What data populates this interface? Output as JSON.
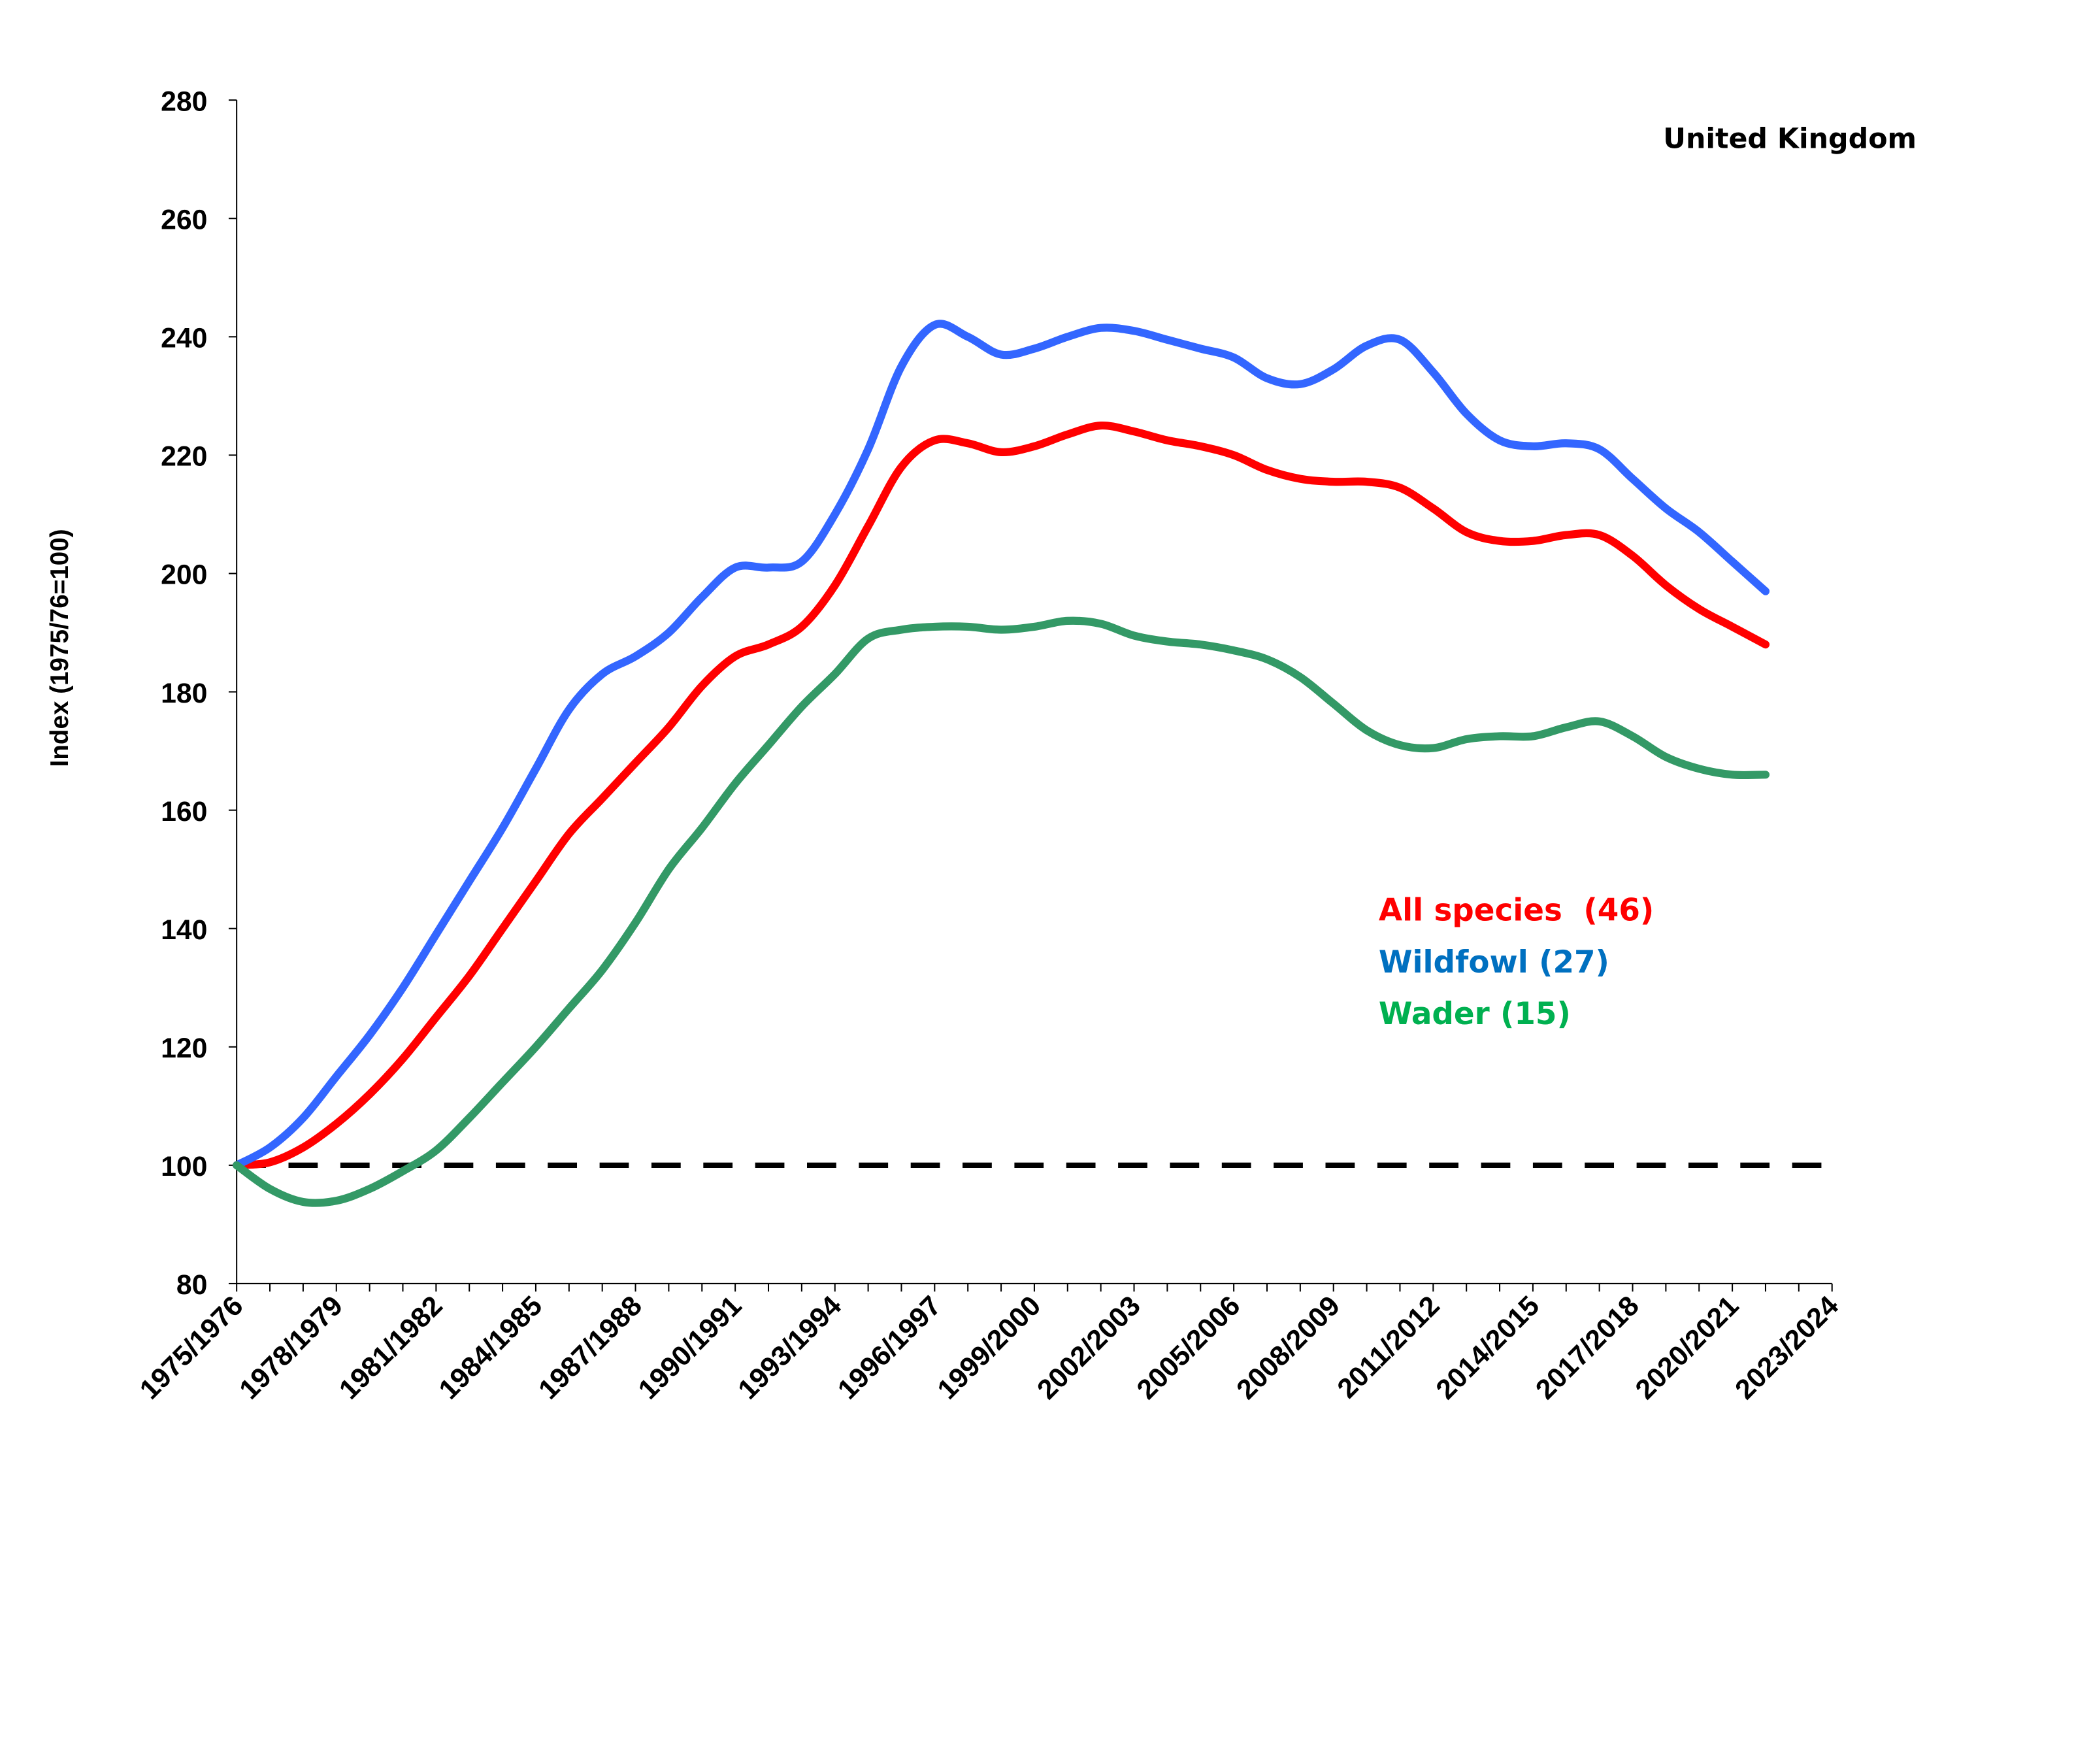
{
  "chart_data": {
    "type": "line",
    "title": "",
    "annotation": "United Kingdom",
    "xlabel": "",
    "ylabel": "Index (1975/76=100)",
    "ylim": [
      80,
      280
    ],
    "yticks": [
      80,
      100,
      120,
      140,
      160,
      180,
      200,
      220,
      240,
      260,
      280
    ],
    "xtick_labels": [
      "1975/1976",
      "1978/1979",
      "1981/1982",
      "1984/1985",
      "1987/1988",
      "1990/1991",
      "1993/1994",
      "1996/1997",
      "1999/2000",
      "2002/2003",
      "2005/2006",
      "2008/2009",
      "2011/2012",
      "2014/2015",
      "2017/2018",
      "2020/2021",
      "2023/2024"
    ],
    "x_start_year": 1975,
    "x_end_year": 2023,
    "grid": false,
    "reference_line": {
      "value": 100,
      "style": "dashed",
      "color": "#000000"
    },
    "legend_placement": "right-middle",
    "series": [
      {
        "name": "All species  (46)",
        "color": "#FF0000",
        "legend_color": "#FF0000",
        "values": [
          100,
          100.5,
          103,
          107,
          112,
          118,
          125,
          132,
          140,
          148,
          156,
          162,
          168,
          174,
          181,
          186,
          188,
          191,
          198,
          208,
          218,
          222.5,
          222,
          220.5,
          221.5,
          223.5,
          225,
          224,
          222.5,
          221.5,
          220,
          217.5,
          216,
          215.5,
          215.5,
          214.5,
          211,
          207,
          205.5,
          205.5,
          206.5,
          206.5,
          203,
          198,
          194,
          191,
          188
        ]
      },
      {
        "name": "Wildfowl (27)",
        "color": "#3366FF",
        "legend_color": "#0070C0",
        "values": [
          100,
          103,
          108,
          115,
          122,
          130,
          139,
          148,
          157,
          167,
          177,
          183,
          186,
          190,
          196,
          201,
          201,
          202,
          210,
          221,
          235,
          242,
          240,
          237,
          238,
          240,
          241.5,
          241,
          239.5,
          238,
          236.5,
          233,
          232,
          234.5,
          238.5,
          239.5,
          234,
          227,
          222.5,
          221.5,
          222,
          221,
          216,
          211,
          207,
          202,
          197
        ]
      },
      {
        "name": "Wader (15)",
        "color": "#339966",
        "legend_color": "#00B050",
        "values": [
          100,
          96,
          93.8,
          94,
          96,
          99,
          102.5,
          108,
          114,
          120,
          126.5,
          133,
          141,
          150,
          157,
          164.5,
          171,
          177.5,
          183,
          189,
          190.5,
          191,
          191,
          190.5,
          191,
          192,
          191.5,
          189.5,
          188.5,
          188,
          187,
          185.5,
          182.5,
          178,
          173.5,
          171,
          170.5,
          172,
          172.5,
          172.5,
          174,
          175,
          172.5,
          169,
          167,
          166,
          166
        ]
      }
    ]
  }
}
